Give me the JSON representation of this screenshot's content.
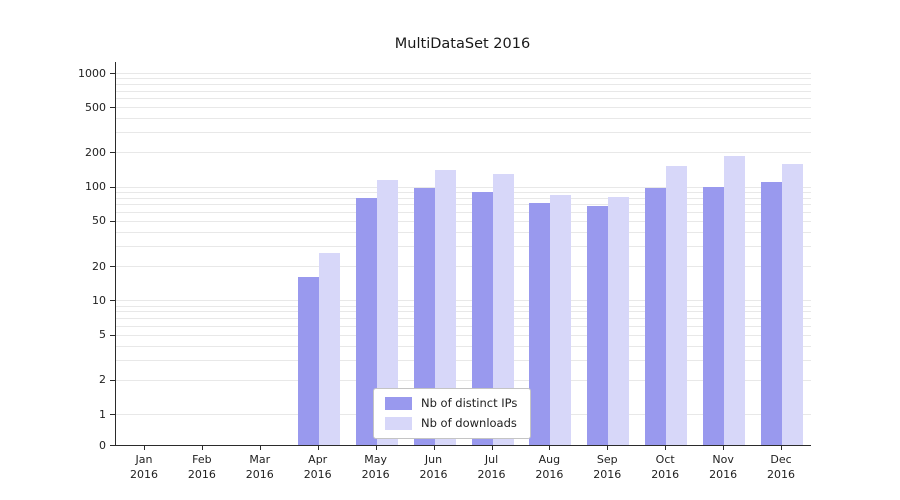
{
  "figure": {
    "background": "#ffffff"
  },
  "chart_data": {
    "type": "bar",
    "title": "MultiDataSet 2016",
    "year": "2016",
    "categories": [
      "Jan",
      "Feb",
      "Mar",
      "Apr",
      "May",
      "Jun",
      "Jul",
      "Aug",
      "Sep",
      "Oct",
      "Nov",
      "Dec"
    ],
    "series": [
      {
        "name": "Nb of distinct IPs",
        "color": "#9999ee",
        "values": [
          0,
          0,
          0,
          16,
          80,
          97,
          90,
          72,
          68,
          97,
          100,
          110
        ]
      },
      {
        "name": "Nb of downloads",
        "color": "#d7d7f9",
        "values": [
          0,
          0,
          0,
          26,
          115,
          140,
          130,
          85,
          82,
          152,
          185,
          160
        ]
      }
    ],
    "yticks": [
      0,
      1,
      2,
      5,
      10,
      20,
      50,
      100,
      200,
      500,
      1000
    ],
    "yscale": "symlog",
    "ylim": [
      0,
      1000
    ],
    "grid": true,
    "legend_position": "lower center",
    "axis_color": "#2b2b2b",
    "grid_color": "#e8e8e8"
  }
}
